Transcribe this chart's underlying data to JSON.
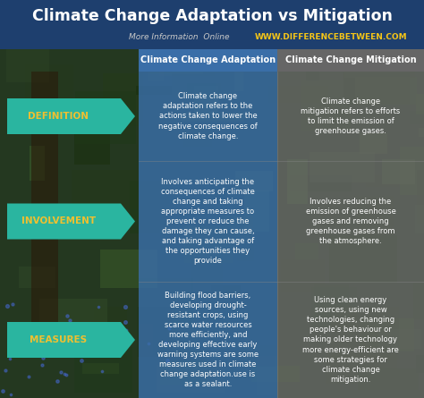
{
  "title": "Climate Change Adaptation vs Mitigation",
  "subtitle_left": "More Information  Online",
  "subtitle_right": "WWW.DIFFERENCEBETWEEN.COM",
  "col1_header": "Climate Change Adaptation",
  "col2_header": "Climate Change Mitigation",
  "rows": [
    "DEFINITION",
    "INVOLVEMENT",
    "MEASURES"
  ],
  "row_label_color": "#f0c030",
  "col1_data": [
    "Climate change\nadaptation refers to the\nactions taken to lower the\nnegative consequences of\nclimate change.",
    "Involves anticipating the\nconsequences of climate\nchange and taking\nappropriate measures to\nprevent or reduce the\ndamage they can cause,\nand taking advantage of\nthe opportunities they\nprovide",
    "Building flood barriers,\ndeveloping drought-\nresistant crops, using\nscarce water resources\nmore efficiently, and\ndeveloping effective early\nwarning systems are some\nmeasures used in climate\nchange adaptation.use is\nas a sealant."
  ],
  "col2_data": [
    "Climate change\nmitigation refers to efforts\nto limit the emission of\ngreenhouse gases.",
    "Involves reducing the\nemission of greenhouse\ngases and removing\ngreenhouse gases from\nthe atmosphere.",
    "Using clean energy\nsources, using new\ntechnologies, changing\npeople's behaviour or\nmaking older technology\nmore energy-efficient are\nsome strategies for\nclimate change\nmitigation."
  ],
  "header_bg": "#1e3f6e",
  "title_color": "#ffffff",
  "subtitle_left_color": "#c8c8c8",
  "subtitle_right_color": "#f5c518",
  "col1_header_bg": "#3a6ea8",
  "col2_header_bg": "#666666",
  "col1_bg_alpha": 0.82,
  "col2_bg_alpha": 0.75,
  "col1_bg": "#3a6ea8",
  "col2_bg": "#6e6e6e",
  "row_label_bg": "#2ab5a0",
  "cell_text_color": "#ffffff",
  "header_text_color": "#ffffff",
  "bg_top": "#2a4060",
  "bg_bottom": "#1a3020",
  "nature_colors": [
    "#2a4a1a",
    "#1a3010",
    "#3a5a2a",
    "#4a6a3a",
    "#2a3a1a"
  ],
  "fig_w": 4.74,
  "fig_h": 4.45,
  "dpi": 100
}
